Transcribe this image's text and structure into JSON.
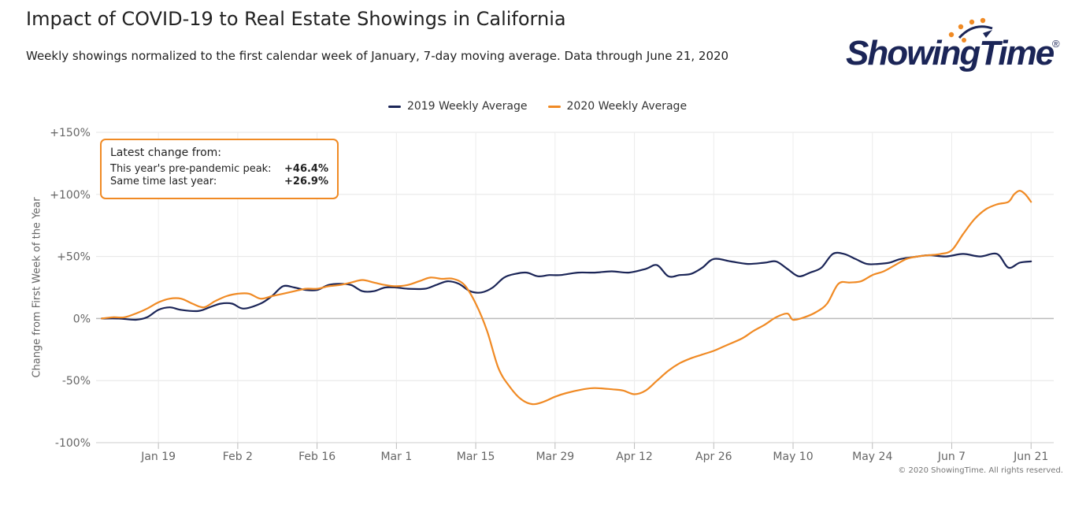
{
  "header": {
    "title": "Impact of COVID-19 to Real Estate Showings in California",
    "subtitle": "Weekly showings normalized to the first calendar week of January, 7-day moving average. Data through June 21, 2020"
  },
  "logo": {
    "text": "ShowingTime",
    "mark": "®",
    "accent_color": "#f08a24",
    "text_color": "#1b2557"
  },
  "info_box": {
    "heading": "Latest change from:",
    "rows": [
      {
        "label": "This year's pre-pandemic peak:",
        "value": "+46.4%"
      },
      {
        "label": "Same time last year:",
        "value": "+26.9%"
      }
    ],
    "border_color": "#f08a24"
  },
  "copyright": "© 2020 ShowingTime. All rights reserved.",
  "chart_data": {
    "type": "line",
    "title": "Impact of COVID-19 to Real Estate Showings in California",
    "ylabel": "Change from First Week of the Year",
    "xlabel": "",
    "ylim": [
      -100,
      150
    ],
    "xlim": [
      "Jan 8",
      "Jun 25"
    ],
    "yticks": [
      150,
      100,
      50,
      0,
      -50,
      -100
    ],
    "ytick_labels": [
      "+150%",
      "+100%",
      "+50%",
      "0%",
      "-50%",
      "-100%"
    ],
    "xticks": [
      "Jan 19",
      "Feb 2",
      "Feb 16",
      "Mar 1",
      "Mar 15",
      "Mar 29",
      "Apr 12",
      "Apr 26",
      "May 10",
      "May 24",
      "Jun 7",
      "Jun 21"
    ],
    "grid": true,
    "legend": "top-center",
    "series": [
      {
        "name": "2019 Weekly Average",
        "color": "#1b2557",
        "x": [
          "Jan 9",
          "Jan 12",
          "Jan 15",
          "Jan 17",
          "Jan 19",
          "Jan 21",
          "Jan 23",
          "Jan 26",
          "Jan 28",
          "Jan 30",
          "Feb 1",
          "Feb 3",
          "Feb 6",
          "Feb 8",
          "Feb 10",
          "Feb 12",
          "Feb 14",
          "Feb 16",
          "Feb 18",
          "Feb 20",
          "Feb 22",
          "Feb 24",
          "Feb 26",
          "Feb 28",
          "Mar 1",
          "Mar 3",
          "Mar 6",
          "Mar 8",
          "Mar 10",
          "Mar 12",
          "Mar 14",
          "Mar 16",
          "Mar 18",
          "Mar 20",
          "Mar 22",
          "Mar 24",
          "Mar 26",
          "Mar 28",
          "Mar 30",
          "Apr 2",
          "Apr 5",
          "Apr 8",
          "Apr 11",
          "Apr 14",
          "Apr 16",
          "Apr 18",
          "Apr 20",
          "Apr 22",
          "Apr 24",
          "Apr 26",
          "Apr 29",
          "May 2",
          "May 5",
          "May 7",
          "May 9",
          "May 11",
          "May 13",
          "May 15",
          "May 17",
          "May 19",
          "May 21",
          "May 23",
          "May 25",
          "May 27",
          "May 29",
          "Jun 1",
          "Jun 3",
          "Jun 6",
          "Jun 9",
          "Jun 12",
          "Jun 15",
          "Jun 17",
          "Jun 19",
          "Jun 21"
        ],
        "y": [
          0,
          0,
          -1,
          1,
          7,
          9,
          7,
          6,
          9,
          12,
          12,
          8,
          12,
          18,
          26,
          25,
          23,
          23,
          27,
          28,
          27,
          22,
          22,
          25,
          25,
          24,
          24,
          27,
          30,
          28,
          22,
          21,
          25,
          33,
          36,
          37,
          34,
          35,
          35,
          37,
          37,
          38,
          37,
          40,
          43,
          34,
          35,
          36,
          41,
          48,
          46,
          44,
          45,
          46,
          40,
          34,
          37,
          41,
          52,
          52,
          48,
          44,
          44,
          45,
          48,
          50,
          51,
          50,
          52,
          50,
          52,
          41,
          45,
          46
        ]
      },
      {
        "name": "2020 Weekly Average",
        "color": "#f08a24",
        "x": [
          "Jan 9",
          "Jan 11",
          "Jan 13",
          "Jan 15",
          "Jan 17",
          "Jan 19",
          "Jan 21",
          "Jan 23",
          "Jan 25",
          "Jan 27",
          "Jan 29",
          "Jan 31",
          "Feb 2",
          "Feb 4",
          "Feb 6",
          "Feb 8",
          "Feb 10",
          "Feb 12",
          "Feb 14",
          "Feb 16",
          "Feb 18",
          "Feb 20",
          "Feb 22",
          "Feb 24",
          "Feb 26",
          "Feb 28",
          "Mar 1",
          "Mar 3",
          "Mar 5",
          "Mar 7",
          "Mar 9",
          "Mar 11",
          "Mar 13",
          "Mar 15",
          "Mar 17",
          "Mar 19",
          "Mar 21",
          "Mar 23",
          "Mar 25",
          "Mar 27",
          "Mar 29",
          "Mar 31",
          "Apr 3",
          "Apr 5",
          "Apr 8",
          "Apr 10",
          "Apr 12",
          "Apr 14",
          "Apr 16",
          "Apr 18",
          "Apr 20",
          "Apr 22",
          "Apr 24",
          "Apr 26",
          "Apr 28",
          "May 1",
          "May 3",
          "May 5",
          "May 7",
          "May 9",
          "May 10",
          "May 12",
          "May 14",
          "May 16",
          "May 18",
          "May 20",
          "May 22",
          "May 24",
          "May 26",
          "May 28",
          "May 30",
          "Jun 1",
          "Jun 3",
          "Jun 5",
          "Jun 7",
          "Jun 9",
          "Jun 11",
          "Jun 13",
          "Jun 15",
          "Jun 17",
          "Jun 18",
          "Jun 19",
          "Jun 20",
          "Jun 21"
        ],
        "y": [
          0,
          1,
          1,
          4,
          8,
          13,
          16,
          16,
          12,
          9,
          14,
          18,
          20,
          20,
          16,
          18,
          20,
          22,
          24,
          24,
          26,
          27,
          29,
          31,
          29,
          27,
          26,
          27,
          30,
          33,
          32,
          32,
          27,
          12,
          -10,
          -40,
          -55,
          -65,
          -69,
          -67,
          -63,
          -60,
          -57,
          -56,
          -57,
          -58,
          -61,
          -58,
          -50,
          -42,
          -36,
          -32,
          -29,
          -26,
          -22,
          -16,
          -10,
          -5,
          1,
          4,
          -1,
          1,
          5,
          12,
          28,
          29,
          30,
          35,
          38,
          43,
          48,
          50,
          51,
          52,
          55,
          68,
          80,
          88,
          92,
          94,
          100,
          103,
          100,
          94
        ]
      }
    ]
  }
}
